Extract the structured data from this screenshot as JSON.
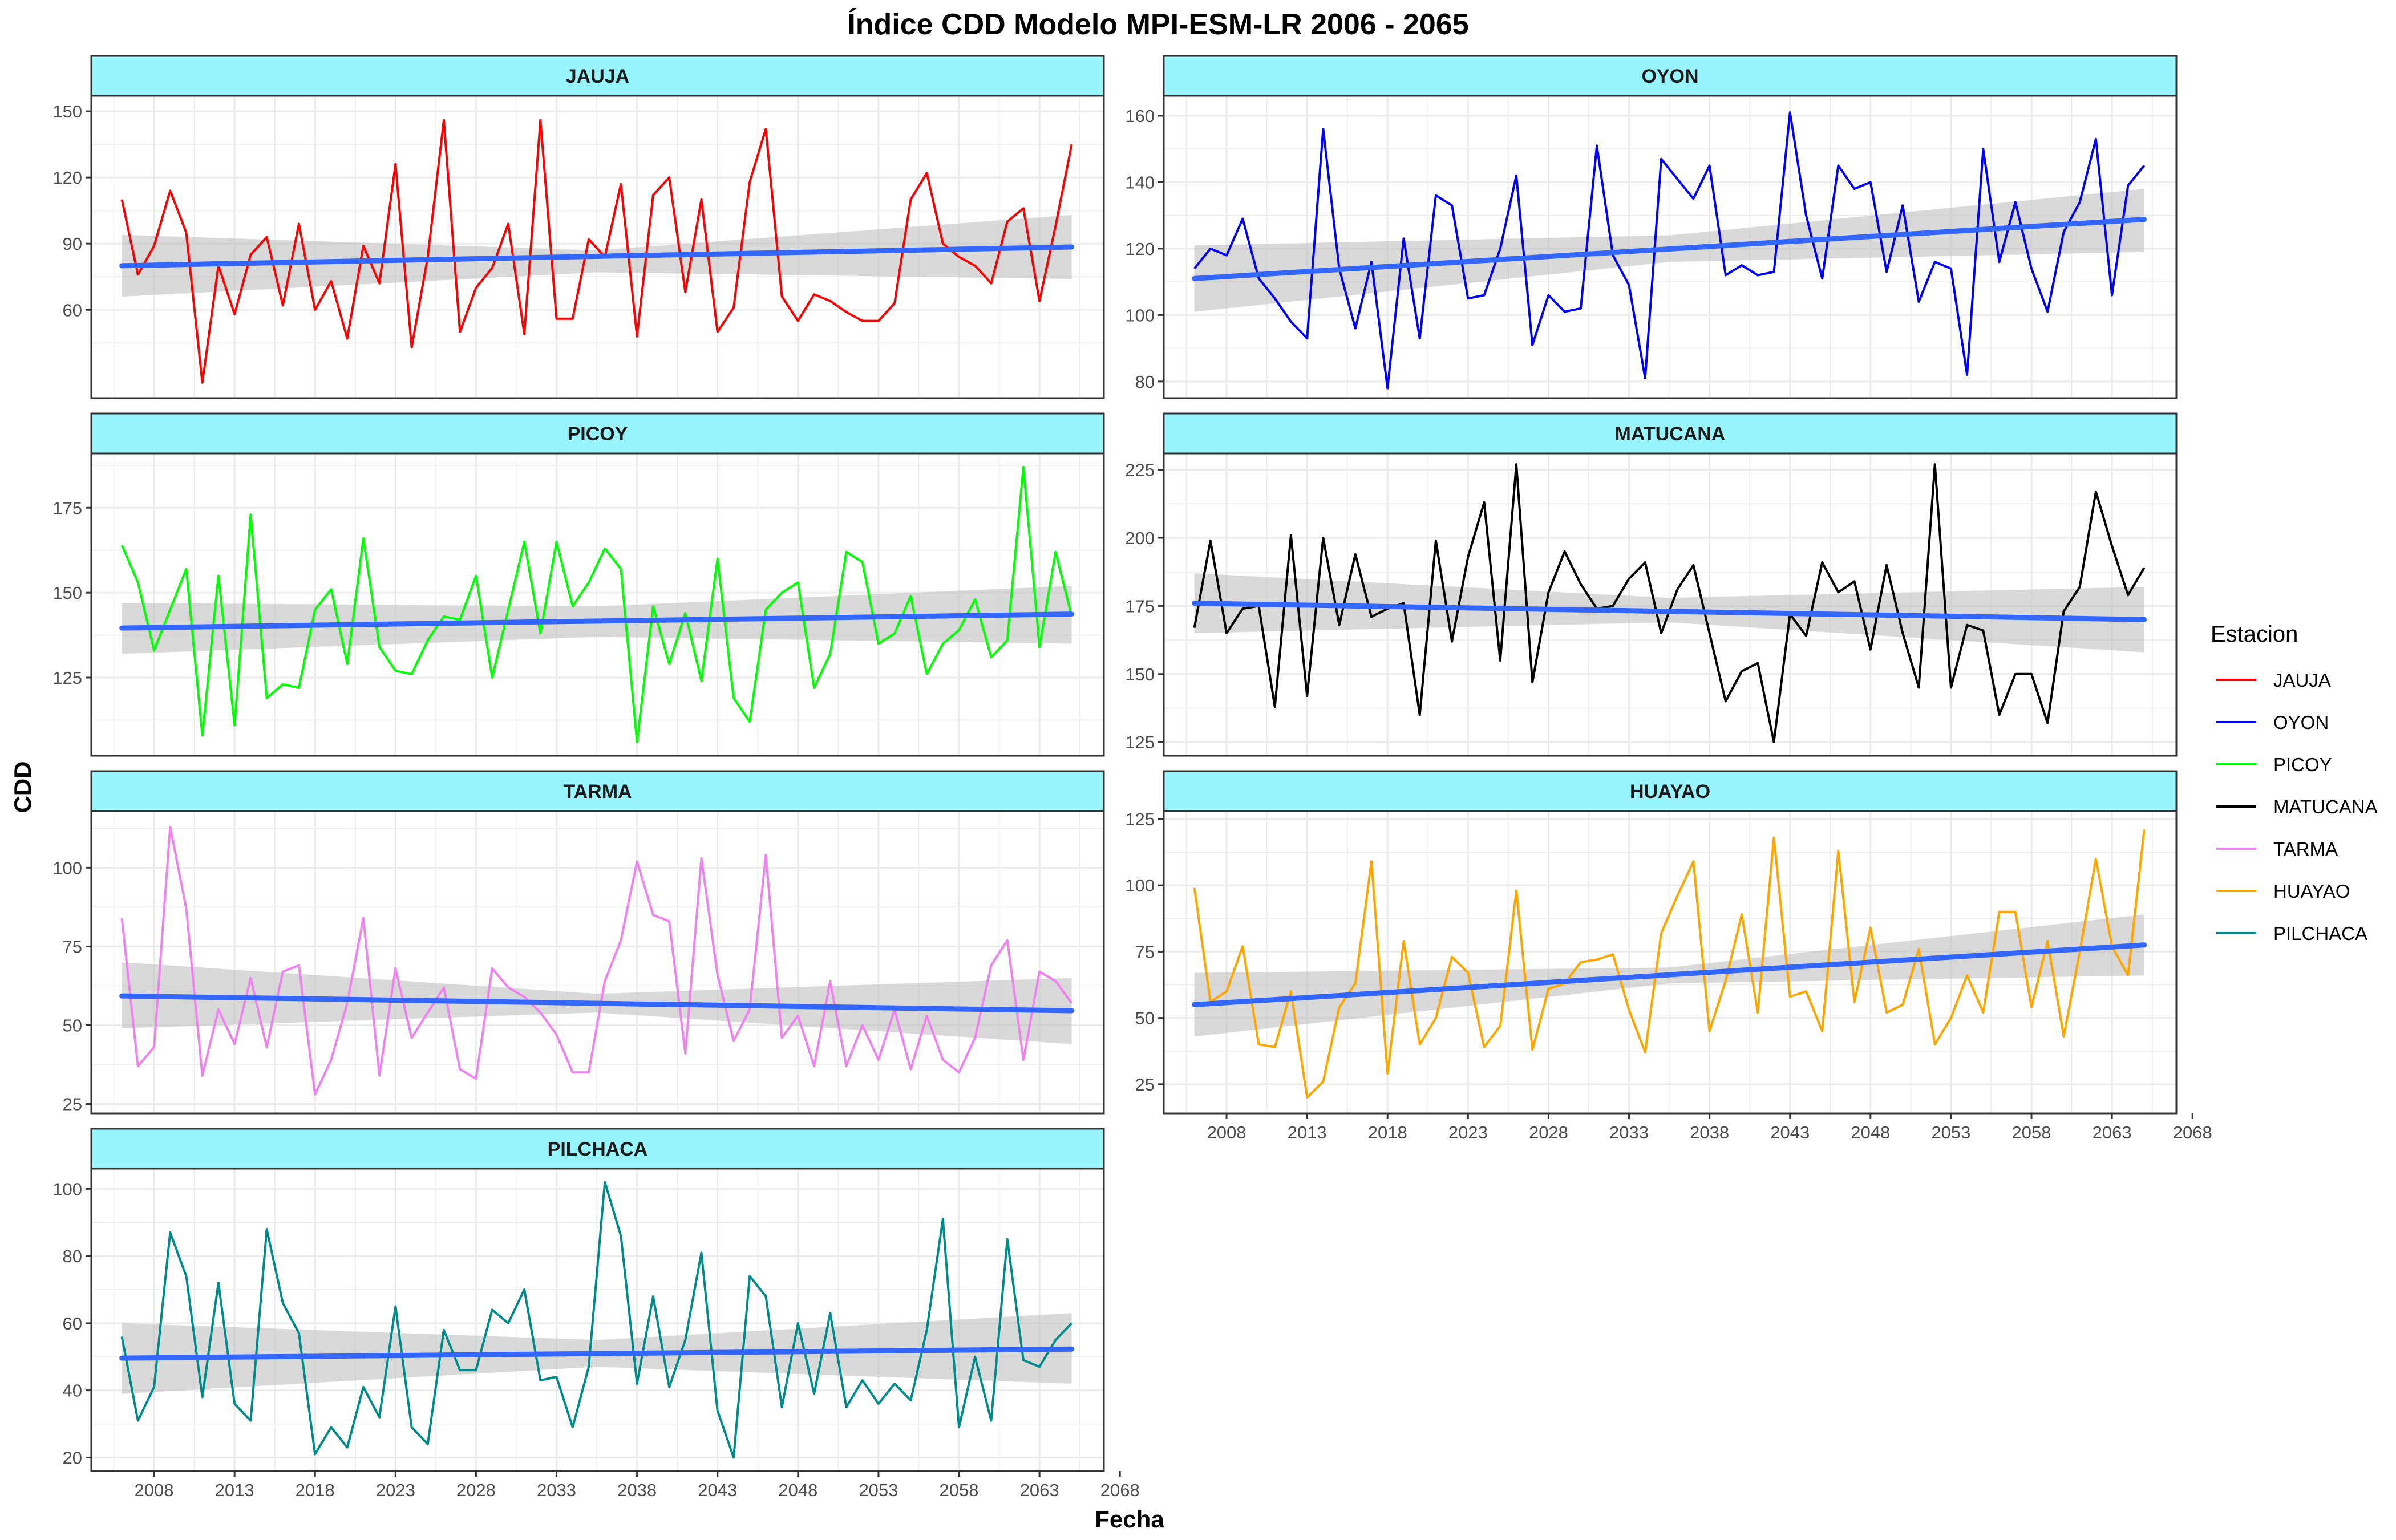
{
  "title": "Índice CDD Modelo MPI-ESM-LR 2006 - 2065",
  "xlabel": "Fecha",
  "ylabel": "CDD",
  "legend": {
    "title": "Estacion",
    "position": "right",
    "items": [
      {
        "label": "JAUJA",
        "color": "#ff0000"
      },
      {
        "label": "OYON",
        "color": "#0000ff"
      },
      {
        "label": "PICOY",
        "color": "#00ff00"
      },
      {
        "label": "MATUCANA",
        "color": "#000000"
      },
      {
        "label": "TARMA",
        "color": "#ee82ee"
      },
      {
        "label": "HUAYAO",
        "color": "#ffa500"
      },
      {
        "label": "PILCHACA",
        "color": "#008b8b"
      }
    ]
  },
  "colors": {
    "strip_fill": "#98f5ff",
    "trend_line": "#3366ff",
    "confidence_band": "#bfbfbf",
    "grid": "#ebebeb"
  },
  "x_ticks": [
    2008,
    2013,
    2018,
    2023,
    2028,
    2033,
    2038,
    2043,
    2048,
    2053,
    2058,
    2063,
    2068
  ],
  "chart_data": [
    {
      "type": "line",
      "panel": "JAUJA",
      "color": "#ff0000",
      "x_start": 2006,
      "xlim": [
        2004.1,
        2067.0
      ],
      "ylim": [
        20,
        157
      ],
      "y_ticks": [
        60,
        90,
        120,
        150
      ],
      "values": [
        110,
        76,
        89,
        114,
        95,
        27,
        80,
        58,
        85,
        93,
        62,
        99,
        60,
        73,
        47,
        89,
        72,
        126,
        43,
        84,
        146,
        50,
        70,
        79,
        99,
        49,
        146,
        56,
        56,
        92,
        84,
        117,
        48,
        112,
        120,
        68,
        110,
        50,
        61,
        118,
        142,
        66,
        55,
        67,
        64,
        59,
        55,
        55,
        63,
        110,
        122,
        90,
        84,
        80,
        72,
        100,
        106,
        64,
        98,
        135
      ],
      "trend": {
        "start": 80,
        "end": 88.5
      },
      "band": {
        "lower": [
          66,
          77,
          74
        ],
        "upper": [
          94,
          87,
          103
        ]
      }
    },
    {
      "type": "line",
      "panel": "OYON",
      "color": "#0000ff",
      "x_start": 2006,
      "xlim": [
        2004.1,
        2067.0
      ],
      "ylim": [
        75,
        166
      ],
      "y_ticks": [
        80,
        100,
        120,
        140,
        160
      ],
      "values": [
        114,
        120,
        118,
        129,
        111,
        105,
        98,
        93,
        156,
        114,
        96,
        116,
        78,
        123,
        93,
        136,
        133,
        105,
        106,
        120,
        142,
        91,
        106,
        101,
        102,
        151,
        118,
        109,
        81,
        147,
        141,
        135,
        145,
        112,
        115,
        112,
        113,
        161,
        130,
        111,
        145,
        138,
        140,
        113,
        133,
        104,
        116,
        114,
        82,
        150,
        116,
        134,
        114,
        101,
        125,
        134,
        153,
        106,
        139,
        145
      ],
      "trend": {
        "start": 111,
        "end": 128.8
      },
      "band": {
        "lower": [
          101,
          116,
          119
        ],
        "upper": [
          121,
          124,
          138
        ]
      }
    },
    {
      "type": "line",
      "panel": "PICOY",
      "color": "#00ff00",
      "x_start": 2006,
      "xlim": [
        2004.1,
        2067.0
      ],
      "ylim": [
        102,
        191
      ],
      "y_ticks": [
        125,
        150,
        175
      ],
      "values": [
        164,
        153,
        133,
        145,
        157,
        108,
        155,
        111,
        173,
        119,
        123,
        122,
        145,
        151,
        129,
        166,
        134,
        127,
        126,
        136,
        143,
        142,
        155,
        125,
        145,
        165,
        138,
        165,
        146,
        153,
        163,
        157,
        106,
        146,
        129,
        144,
        124,
        160,
        119,
        112,
        145,
        150,
        153,
        122,
        132,
        162,
        159,
        135,
        138,
        149,
        126,
        135,
        139,
        148,
        131,
        136,
        187,
        134,
        162,
        143
      ],
      "trend": {
        "start": 139.6,
        "end": 143.7
      },
      "band": {
        "lower": [
          132,
          137,
          135
        ],
        "upper": [
          147,
          146,
          152
        ]
      }
    },
    {
      "type": "line",
      "panel": "MATUCANA",
      "color": "#000000",
      "x_start": 2006,
      "xlim": [
        2004.1,
        2067.0
      ],
      "ylim": [
        120,
        231
      ],
      "y_ticks": [
        125,
        150,
        175,
        200,
        225
      ],
      "values": [
        167,
        199,
        165,
        174,
        175,
        138,
        201,
        142,
        200,
        168,
        194,
        171,
        174,
        176,
        135,
        199,
        162,
        193,
        213,
        155,
        227,
        147,
        180,
        195,
        183,
        174,
        175,
        185,
        191,
        165,
        181,
        190,
        165,
        140,
        151,
        154,
        125,
        172,
        164,
        191,
        180,
        184,
        159,
        190,
        165,
        145,
        227,
        145,
        168,
        166,
        135,
        150,
        150,
        132,
        173,
        182,
        217,
        197,
        179,
        189
      ],
      "trend": {
        "start": 176,
        "end": 170
      },
      "band": {
        "lower": [
          165,
          169,
          158
        ],
        "upper": [
          187,
          178,
          182
        ]
      }
    },
    {
      "type": "line",
      "panel": "TARMA",
      "color": "#ee82ee",
      "x_start": 2006,
      "xlim": [
        2004.1,
        2067.0
      ],
      "ylim": [
        22,
        118
      ],
      "y_ticks": [
        25,
        50,
        75,
        100
      ],
      "values": [
        84,
        37,
        43,
        113,
        87,
        34,
        55,
        44,
        65,
        43,
        67,
        69,
        28,
        39,
        57,
        84,
        34,
        68,
        46,
        54,
        62,
        36,
        33,
        68,
        62,
        59,
        54,
        47,
        35,
        35,
        64,
        77,
        102,
        85,
        83,
        41,
        103,
        66,
        45,
        55,
        104,
        46,
        53,
        37,
        64,
        37,
        50,
        39,
        55,
        36,
        53,
        39,
        35,
        46,
        69,
        77,
        39,
        67,
        64,
        57
      ],
      "trend": {
        "start": 59.3,
        "end": 54.6
      },
      "band": {
        "lower": [
          49,
          54,
          44
        ],
        "upper": [
          70,
          60,
          65
        ]
      }
    },
    {
      "type": "line",
      "panel": "HUAYAO",
      "color": "#ffa500",
      "x_start": 2006,
      "xlim": [
        2004.1,
        2067.0
      ],
      "ylim": [
        14,
        128
      ],
      "y_ticks": [
        25,
        50,
        75,
        100,
        125
      ],
      "values": [
        99,
        56,
        60,
        77,
        40,
        39,
        60,
        20,
        26,
        54,
        63,
        109,
        29,
        79,
        40,
        50,
        73,
        67,
        39,
        47,
        98,
        38,
        61,
        63,
        71,
        72,
        74,
        53,
        37,
        82,
        96,
        109,
        45,
        64,
        89,
        52,
        118,
        58,
        60,
        45,
        113,
        56,
        84,
        52,
        55,
        76,
        40,
        50,
        66,
        52,
        90,
        90,
        54,
        79,
        43,
        75,
        110,
        77,
        66,
        121
      ],
      "trend": {
        "start": 55,
        "end": 77.5
      },
      "band": {
        "lower": [
          43,
          63,
          66
        ],
        "upper": [
          67,
          69,
          89
        ]
      }
    },
    {
      "type": "line",
      "panel": "PILCHACA",
      "color": "#008b8b",
      "x_start": 2006,
      "xlim": [
        2004.1,
        2067.0
      ],
      "ylim": [
        16,
        106
      ],
      "y_ticks": [
        20,
        40,
        60,
        80,
        100
      ],
      "values": [
        56,
        31,
        41,
        87,
        74,
        38,
        72,
        36,
        31,
        88,
        66,
        57,
        21,
        29,
        23,
        41,
        32,
        65,
        29,
        24,
        58,
        46,
        46,
        64,
        60,
        70,
        43,
        44,
        29,
        47,
        102,
        86,
        42,
        68,
        41,
        55,
        81,
        34,
        20,
        74,
        68,
        35,
        60,
        39,
        63,
        35,
        43,
        36,
        42,
        37,
        58,
        91,
        29,
        50,
        31,
        85,
        49,
        47,
        55,
        60
      ],
      "trend": {
        "start": 49.6,
        "end": 52.3
      },
      "band": {
        "lower": [
          39,
          47,
          42
        ],
        "upper": [
          60,
          55,
          63
        ]
      }
    }
  ]
}
